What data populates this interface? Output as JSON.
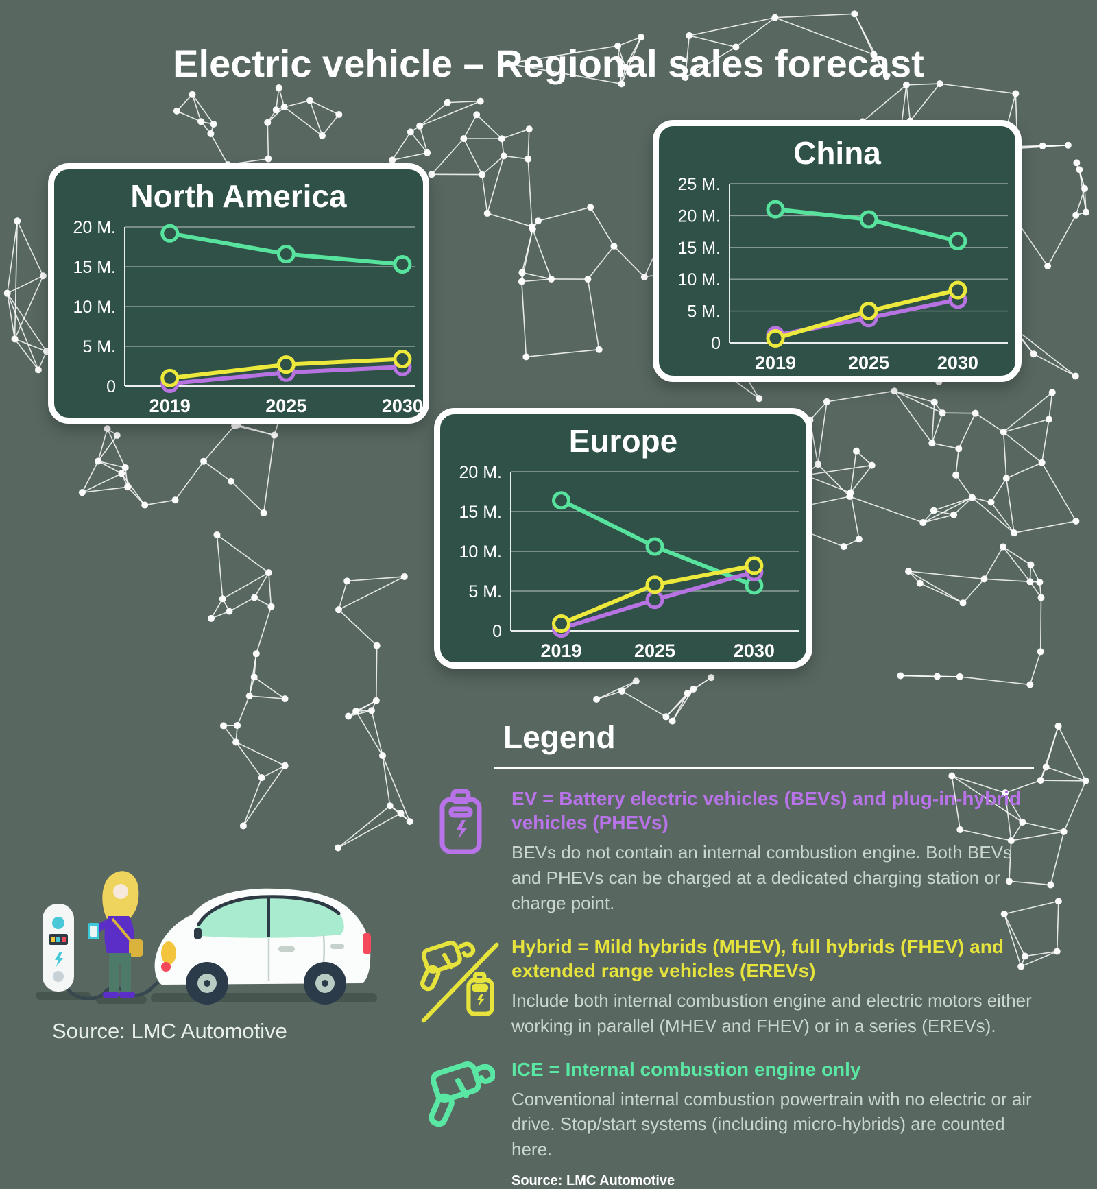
{
  "page": {
    "title": "Electric vehicle – Regional sales forecast"
  },
  "colors": {
    "background": "#586861",
    "panel": "#2F5147",
    "ice_line": "#57E39E",
    "hybrid_line": "#EDE93C",
    "ev_line": "#B873E3",
    "heading_ev": "#B873E8",
    "heading_hybrid": "#E6E33C",
    "heading_ice": "#5AE6A3"
  },
  "chart_data": [
    {
      "type": "line",
      "title": "North America",
      "x_labels": [
        "2019",
        "2025",
        "2030"
      ],
      "ylim": [
        0,
        20
      ],
      "grid": true,
      "y_ticks": [
        {
          "value": 20,
          "label": "20 M."
        },
        {
          "value": 15,
          "label": "15 M."
        },
        {
          "value": 10,
          "label": "10 M."
        },
        {
          "value": 5,
          "label": "5 M."
        },
        {
          "value": 0,
          "label": "0"
        }
      ],
      "series": [
        {
          "name": "ICE",
          "color": "#57E39E",
          "values": [
            19.2,
            16.6,
            15.3
          ]
        },
        {
          "name": "EV",
          "color": "#B873E3",
          "values": [
            0.3,
            1.7,
            2.4
          ]
        },
        {
          "name": "Hybrid",
          "color": "#EDE93C",
          "values": [
            1.0,
            2.7,
            3.4
          ]
        }
      ]
    },
    {
      "type": "line",
      "title": "China",
      "x_labels": [
        "2019",
        "2025",
        "2030"
      ],
      "ylim": [
        0,
        25
      ],
      "grid": true,
      "y_ticks": [
        {
          "value": 25,
          "label": "25 M."
        },
        {
          "value": 20,
          "label": "20 M."
        },
        {
          "value": 15,
          "label": "15 M."
        },
        {
          "value": 10,
          "label": "10 M."
        },
        {
          "value": 5,
          "label": "5 M."
        },
        {
          "value": 0,
          "label": "0"
        }
      ],
      "series": [
        {
          "name": "ICE",
          "color": "#57E39E",
          "values": [
            21.0,
            19.4,
            16.0
          ]
        },
        {
          "name": "EV",
          "color": "#B873E3",
          "values": [
            1.2,
            3.9,
            6.8
          ]
        },
        {
          "name": "Hybrid",
          "color": "#EDE93C",
          "values": [
            0.7,
            5.0,
            8.3
          ]
        }
      ]
    },
    {
      "type": "line",
      "title": "Europe",
      "x_labels": [
        "2019",
        "2025",
        "2030"
      ],
      "ylim": [
        0,
        20
      ],
      "grid": true,
      "y_ticks": [
        {
          "value": 20,
          "label": "20 M."
        },
        {
          "value": 15,
          "label": "15 M."
        },
        {
          "value": 10,
          "label": "10 M."
        },
        {
          "value": 5,
          "label": "5 M."
        },
        {
          "value": 0,
          "label": "0"
        }
      ],
      "series": [
        {
          "name": "ICE",
          "color": "#57E39E",
          "values": [
            16.4,
            10.6,
            5.7
          ]
        },
        {
          "name": "EV",
          "color": "#B873E3",
          "values": [
            0.3,
            3.9,
            7.4
          ]
        },
        {
          "name": "Hybrid",
          "color": "#EDE93C",
          "values": [
            0.9,
            5.8,
            8.2
          ]
        }
      ]
    }
  ],
  "legend": {
    "title": "Legend",
    "entries": [
      {
        "icon": "battery-icon",
        "color": "#B873E8",
        "heading": "EV = Battery electric vehicles (BEVs) and plug-in-hybrid vehicles (PHEVs)",
        "body": "BEVs do not contain an internal combustion engine. Both BEVs and PHEVs can be charged at a dedicated charging station or charge point."
      },
      {
        "icon": "fuel-nozzle-battery-icon",
        "color": "#E6E33C",
        "heading": "Hybrid = Mild hybrids (MHEV), full hybrids (FHEV) and extended range vehicles (EREVs)",
        "body": "Include both internal combustion engine and electric motors either working in parallel (MHEV and FHEV) or in a series (EREVs)."
      },
      {
        "icon": "fuel-nozzle-icon",
        "color": "#5AE6A3",
        "heading": "ICE = Internal combustion engine only",
        "body": "Conventional internal combustion powertrain with no electric or air drive. Stop/start systems (including micro-hybrids) are counted here."
      }
    ],
    "source": "Source: LMC Automotive"
  },
  "footer": {
    "source": "Source: LMC Automotive"
  }
}
